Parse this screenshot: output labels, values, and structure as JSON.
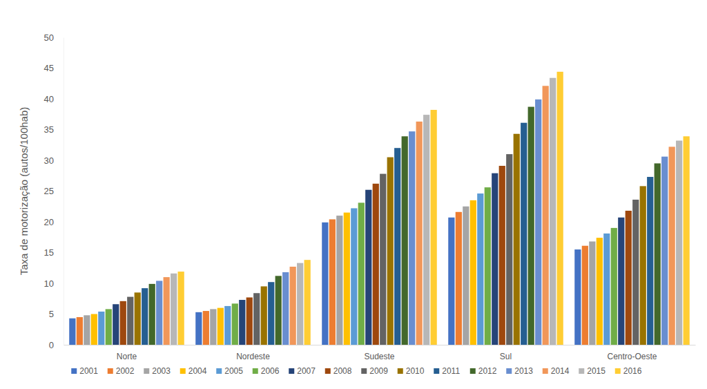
{
  "chart_data": {
    "type": "bar",
    "y_label": "Taxa de motorização (autos/100hab)",
    "categories": [
      "Norte",
      "Nordeste",
      "Sudeste",
      "Sul",
      "Centro-Oeste"
    ],
    "ylim": [
      0,
      50
    ],
    "yticks": [
      0,
      5,
      10,
      15,
      20,
      25,
      30,
      35,
      40,
      45,
      50
    ],
    "grid": false,
    "legend": "bottom",
    "series": [
      {
        "name": "2001",
        "color": "#4472C4",
        "values": [
          4.3,
          5.3,
          19.9,
          20.7,
          15.5
        ]
      },
      {
        "name": "2002",
        "color": "#ED7D31",
        "values": [
          4.5,
          5.5,
          20.4,
          21.6,
          16.1
        ]
      },
      {
        "name": "2003",
        "color": "#A5A5A5",
        "values": [
          4.8,
          5.8,
          21.0,
          22.5,
          16.8
        ]
      },
      {
        "name": "2004",
        "color": "#FFC000",
        "values": [
          5.0,
          6.0,
          21.5,
          23.5,
          17.4
        ]
      },
      {
        "name": "2005",
        "color": "#5B9BD5",
        "values": [
          5.4,
          6.3,
          22.2,
          24.6,
          18.1
        ]
      },
      {
        "name": "2006",
        "color": "#70AD47",
        "values": [
          5.8,
          6.7,
          23.1,
          25.6,
          19.0
        ]
      },
      {
        "name": "2007",
        "color": "#264478",
        "values": [
          6.6,
          7.3,
          25.2,
          27.9,
          20.7
        ]
      },
      {
        "name": "2008",
        "color": "#9E480E",
        "values": [
          7.1,
          7.7,
          26.2,
          29.1,
          21.8
        ]
      },
      {
        "name": "2009",
        "color": "#636363",
        "values": [
          7.8,
          8.4,
          27.8,
          31.0,
          23.6
        ]
      },
      {
        "name": "2010",
        "color": "#997300",
        "values": [
          8.5,
          9.5,
          30.5,
          34.3,
          25.8
        ]
      },
      {
        "name": "2011",
        "color": "#255E91",
        "values": [
          9.2,
          10.2,
          32.0,
          36.1,
          27.3
        ]
      },
      {
        "name": "2012",
        "color": "#43682B",
        "values": [
          9.9,
          11.2,
          33.9,
          38.7,
          29.5
        ]
      },
      {
        "name": "2013",
        "color": "#698ED0",
        "values": [
          10.4,
          11.8,
          34.7,
          39.9,
          30.6
        ]
      },
      {
        "name": "2014",
        "color": "#F1975A",
        "values": [
          11.0,
          12.7,
          36.3,
          42.1,
          32.2
        ]
      },
      {
        "name": "2015",
        "color": "#B7B7B7",
        "values": [
          11.6,
          13.3,
          37.4,
          43.4,
          33.2
        ]
      },
      {
        "name": "2016",
        "color": "#FFCD33",
        "values": [
          11.9,
          13.8,
          38.2,
          44.4,
          33.9
        ]
      }
    ]
  }
}
